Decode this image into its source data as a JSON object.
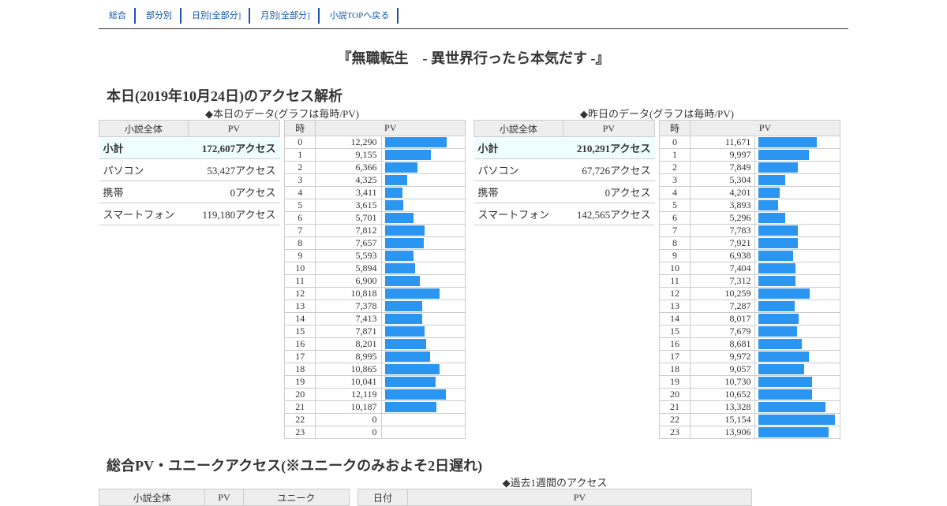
{
  "nav": [
    "総合",
    "部分別",
    "日別[全部分]",
    "月別[全部分]",
    "小説TOPへ戻る"
  ],
  "novel_title": "『無職転生　- 異世界行ったら本気だす -』",
  "today_heading": "本日(2019年10月24日)のアクセス解析",
  "today_caption": "◆本日のデータ(グラフは毎時/PV)",
  "yesterday_caption": "◆昨日のデータ(グラフは毎時/PV)",
  "summary_headers": [
    "小説全体",
    "PV"
  ],
  "hourly_headers": [
    "時",
    "PV"
  ],
  "today_summary": [
    {
      "label": "小計",
      "value": "172,607アクセス"
    },
    {
      "label": "パソコン",
      "value": "53,427アクセス"
    },
    {
      "label": "携帯",
      "value": "0アクセス"
    },
    {
      "label": "スマートフォン",
      "value": "119,180アクセス"
    }
  ],
  "yesterday_summary": [
    {
      "label": "小計",
      "value": "210,291アクセス"
    },
    {
      "label": "パソコン",
      "value": "67,726アクセス"
    },
    {
      "label": "携帯",
      "value": "0アクセス"
    },
    {
      "label": "スマートフォン",
      "value": "142,565アクセス"
    }
  ],
  "hours": [
    "0",
    "1",
    "2",
    "3",
    "4",
    "5",
    "6",
    "7",
    "8",
    "9",
    "10",
    "11",
    "12",
    "13",
    "14",
    "15",
    "16",
    "17",
    "18",
    "19",
    "20",
    "21",
    "22",
    "23"
  ],
  "today_pv_text": [
    "12,290",
    "9,155",
    "6,366",
    "4,325",
    "3,411",
    "3,615",
    "5,701",
    "7,812",
    "7,657",
    "5,593",
    "5,894",
    "6,900",
    "10,818",
    "7,378",
    "7,413",
    "7,871",
    "8,201",
    "8,995",
    "10,865",
    "10,041",
    "12,119",
    "10,187",
    "0",
    "0"
  ],
  "today_pv": [
    12290,
    9155,
    6366,
    4325,
    3411,
    3615,
    5701,
    7812,
    7657,
    5593,
    5894,
    6900,
    10818,
    7378,
    7413,
    7871,
    8201,
    8995,
    10865,
    10041,
    12119,
    10187,
    0,
    0
  ],
  "yesterday_pv_text": [
    "11,671",
    "9,997",
    "7,849",
    "5,304",
    "4,201",
    "3,893",
    "5,296",
    "7,783",
    "7,921",
    "6,938",
    "7,404",
    "7,312",
    "10,259",
    "7,287",
    "8,017",
    "7,679",
    "8,681",
    "9,972",
    "9,057",
    "10,730",
    "10,652",
    "13,328",
    "15,154",
    "13,906"
  ],
  "yesterday_pv": [
    11671,
    9997,
    7849,
    5304,
    4201,
    3893,
    5296,
    7783,
    7921,
    6938,
    7404,
    7312,
    10259,
    7287,
    8017,
    7679,
    8681,
    9972,
    9057,
    10730,
    10652,
    13328,
    15154,
    13906
  ],
  "bar_color": "#2a96f2",
  "bar_scale_max": 15700,
  "total_heading": "総合PV・ユニークアクセス(※ユニークのみおよそ2日遅れ)",
  "week_caption": "◆過去1週間のアクセス",
  "bottom_left_headers": [
    "小説全体",
    "PV",
    "ユニーク"
  ],
  "bottom_right_headers": [
    "日付",
    "PV"
  ]
}
